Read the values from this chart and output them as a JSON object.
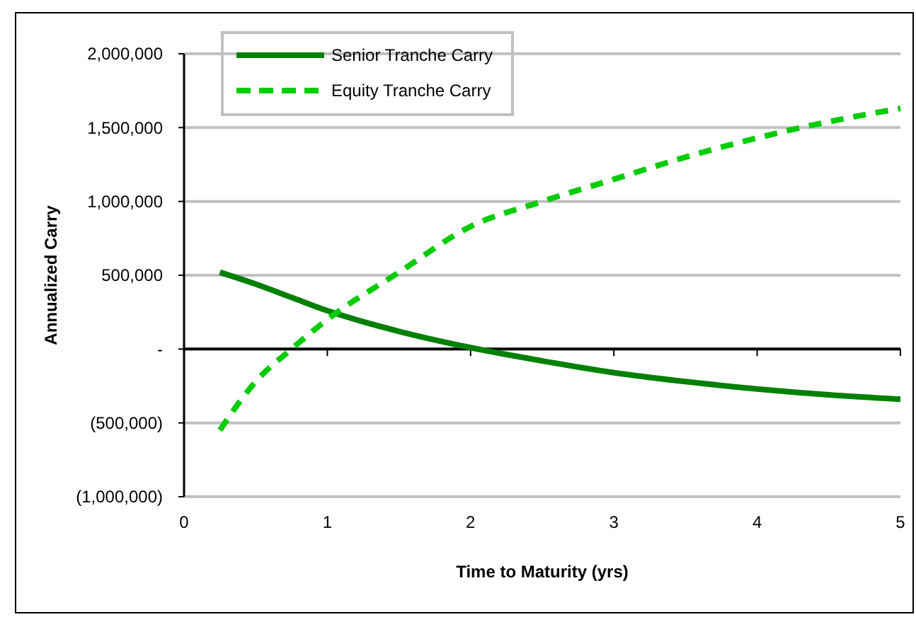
{
  "chart_data": {
    "type": "line",
    "xlabel": "Time to Maturity (yrs)",
    "ylabel": "Annualized Carry",
    "x": [
      0.25,
      0.5,
      0.75,
      1,
      1.5,
      2,
      2.5,
      3,
      3.5,
      4,
      4.5,
      5
    ],
    "series": [
      {
        "name": "Senior Tranche Carry",
        "color": "#008000",
        "line_style": "solid",
        "values": [
          520000,
          440000,
          350000,
          260000,
          120000,
          10000,
          -80000,
          -160000,
          -220000,
          -270000,
          -310000,
          -340000
        ]
      },
      {
        "name": "Equity Tranche Carry",
        "color": "#00cc00",
        "line_style": "dashed",
        "values": [
          -550000,
          -220000,
          0,
          200000,
          520000,
          830000,
          1000000,
          1150000,
          1300000,
          1430000,
          1540000,
          1630000
        ]
      }
    ],
    "xlim": [
      0,
      5
    ],
    "xticks": [
      0,
      1,
      2,
      3,
      4,
      5
    ],
    "ylim": [
      -1000000,
      2000000
    ],
    "yticks": [
      {
        "value": -1000000,
        "label": "(1,000,000)"
      },
      {
        "value": -500000,
        "label": "(500,000)"
      },
      {
        "value": 0,
        "label": "-"
      },
      {
        "value": 500000,
        "label": "500,000"
      },
      {
        "value": 1000000,
        "label": "1,000,000"
      },
      {
        "value": 1500000,
        "label": "1,500,000"
      },
      {
        "value": 2000000,
        "label": "2,000,000"
      }
    ],
    "grid": "y",
    "legend": "top left",
    "marker": "none"
  }
}
